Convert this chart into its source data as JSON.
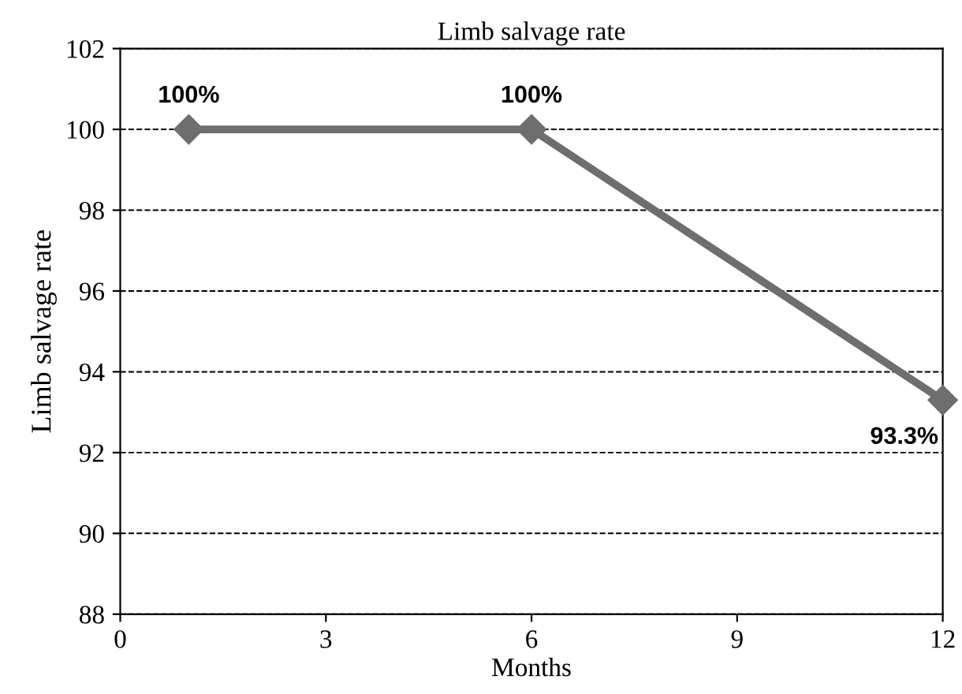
{
  "chart_data": {
    "type": "line",
    "title": "Limb salvage rate",
    "xlabel": "Months",
    "ylabel": "Limb salvage rate",
    "x": [
      1,
      6,
      12
    ],
    "series": [
      {
        "color": "#6e6e6e",
        "values": [
          100,
          100,
          93.3
        ],
        "value_labels": [
          "100%",
          "100%",
          "93.3%"
        ]
      }
    ],
    "xlim": [
      0,
      12
    ],
    "xticks": [
      0,
      3,
      6,
      9,
      12
    ],
    "ylim": [
      88,
      102
    ],
    "yticks": [
      88,
      90,
      92,
      94,
      96,
      98,
      100,
      102
    ],
    "grid": "y",
    "marker": "diamond",
    "line_style": "solid",
    "legend": false
  }
}
